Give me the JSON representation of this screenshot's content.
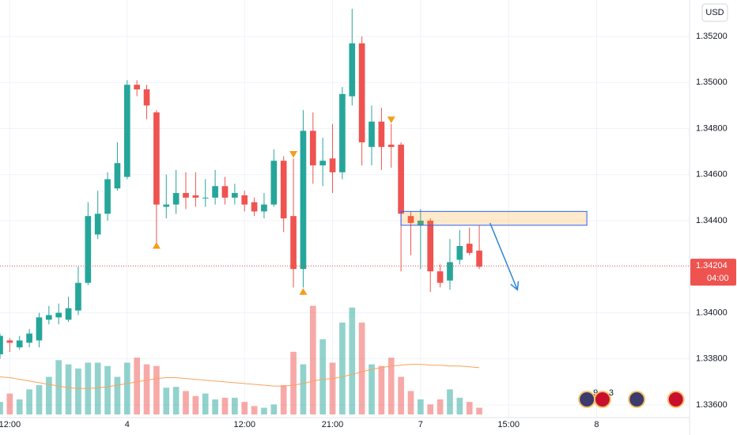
{
  "chart_data": {
    "type": "candlestick",
    "x": [
      0,
      1,
      2,
      3,
      4,
      5,
      6,
      7,
      8,
      9,
      10,
      11,
      12,
      13,
      14,
      15,
      16,
      17,
      18,
      19,
      20,
      21,
      22,
      23,
      24,
      25,
      26,
      27,
      28,
      29,
      30,
      31,
      32,
      33,
      34,
      35,
      36,
      37,
      38,
      39,
      40,
      41,
      42,
      43,
      44,
      45,
      46,
      47,
      48,
      49
    ],
    "open": [
      1.3382,
      1.3388,
      1.3385,
      1.3387,
      1.3388,
      1.3397,
      1.3398,
      1.3397,
      1.3401,
      1.3413,
      1.3434,
      1.3443,
      1.3454,
      1.3459,
      1.3499,
      1.3497,
      1.3487,
      1.3446,
      1.3447,
      1.3452,
      1.3451,
      1.345,
      1.345,
      1.3455,
      1.345,
      1.3451,
      1.3448,
      1.3444,
      1.3447,
      1.3466,
      1.3442,
      1.3419,
      1.3479,
      1.3464,
      1.3467,
      1.3461,
      1.3494,
      1.3517,
      1.3472,
      1.3483,
      1.3473,
      1.3473,
      1.3442,
      1.3438,
      1.344,
      1.3418,
      1.3414,
      1.3423,
      1.343,
      1.3427
    ],
    "high": [
      1.3391,
      1.3389,
      1.339,
      1.3393,
      1.34,
      1.3403,
      1.3404,
      1.3407,
      1.342,
      1.3448,
      1.3453,
      1.3461,
      1.3474,
      1.3501,
      1.3501,
      1.3499,
      1.3488,
      1.346,
      1.3462,
      1.3461,
      1.3461,
      1.3458,
      1.3462,
      1.3459,
      1.3456,
      1.3453,
      1.345,
      1.3452,
      1.3471,
      1.3468,
      1.3467,
      1.3488,
      1.3487,
      1.3476,
      1.3482,
      1.3498,
      1.3532,
      1.352,
      1.349,
      1.3489,
      1.3482,
      1.3474,
      1.3444,
      1.3445,
      1.3441,
      1.3421,
      1.3432,
      1.3436,
      1.3437,
      1.3438
    ],
    "low": [
      1.338,
      1.3383,
      1.3384,
      1.3385,
      1.3385,
      1.3395,
      1.3395,
      1.3396,
      1.3399,
      1.3412,
      1.3432,
      1.344,
      1.3453,
      1.3458,
      1.3494,
      1.3484,
      1.343,
      1.3441,
      1.3443,
      1.3445,
      1.3446,
      1.3446,
      1.3447,
      1.3447,
      1.3447,
      1.3444,
      1.3442,
      1.3441,
      1.3446,
      1.3435,
      1.3411,
      1.3411,
      1.3456,
      1.3455,
      1.3452,
      1.3458,
      1.349,
      1.3464,
      1.3464,
      1.3462,
      1.3463,
      1.3418,
      1.3425,
      1.3419,
      1.3409,
      1.3411,
      1.341,
      1.3421,
      1.3425,
      1.3419
    ],
    "close": [
      1.339,
      1.3387,
      1.3388,
      1.3391,
      1.3398,
      1.3399,
      1.34,
      1.3402,
      1.3413,
      1.3442,
      1.3443,
      1.3458,
      1.3465,
      1.3499,
      1.3497,
      1.349,
      1.3447,
      1.3447,
      1.3452,
      1.345,
      1.345,
      1.345,
      1.3455,
      1.345,
      1.3452,
      1.3447,
      1.3444,
      1.3447,
      1.3466,
      1.3441,
      1.3419,
      1.3479,
      1.3464,
      1.3466,
      1.3461,
      1.3495,
      1.3517,
      1.3474,
      1.3483,
      1.3472,
      1.3472,
      1.3443,
      1.3439,
      1.344,
      1.3418,
      1.3413,
      1.3422,
      1.3429,
      1.3426,
      1.342
    ],
    "volume": [
      15,
      25,
      18,
      30,
      35,
      45,
      65,
      60,
      55,
      62,
      62,
      58,
      45,
      62,
      68,
      60,
      58,
      32,
      33,
      28,
      22,
      25,
      18,
      20,
      20,
      15,
      10,
      8,
      12,
      35,
      75,
      60,
      130,
      90,
      62,
      110,
      128,
      110,
      60,
      58,
      68,
      45,
      28,
      18,
      12,
      18,
      30,
      20,
      15,
      8
    ],
    "volume_ma": [
      45,
      44,
      42,
      40,
      38,
      36,
      34,
      32,
      31,
      31,
      32,
      33,
      35,
      37,
      39,
      41,
      43,
      44,
      44,
      43,
      42,
      41,
      40,
      39,
      38,
      37,
      36,
      35,
      34,
      34,
      35,
      37,
      40,
      42,
      43,
      45,
      48,
      51,
      54,
      56,
      58,
      59,
      60,
      60,
      59,
      59,
      58,
      58,
      57,
      56
    ],
    "up_color": "#26a69a",
    "down_color": "#ef5350",
    "ma_color": "#f7a35c",
    "xlim": [
      0,
      70.5
    ],
    "ylim": [
      1.33545,
      1.35358
    ],
    "vlim": [
      0,
      500
    ],
    "xticks": [
      {
        "value": 1,
        "label": "12:00"
      },
      {
        "value": 13,
        "label": "4"
      },
      {
        "value": 25,
        "label": "12:00"
      },
      {
        "value": 34,
        "label": "21:00"
      },
      {
        "value": 43,
        "label": "7"
      },
      {
        "value": 52,
        "label": "15:00"
      },
      {
        "value": 61,
        "label": "8"
      }
    ],
    "yticks": [
      {
        "value": 1.336,
        "label": "1.33600"
      },
      {
        "value": 1.338,
        "label": "1.33800"
      },
      {
        "value": 1.34,
        "label": "1.34000"
      },
      {
        "value": 1.342,
        "label": "1.34200"
      },
      {
        "value": 1.344,
        "label": "1.34400"
      },
      {
        "value": 1.346,
        "label": "1.34600"
      },
      {
        "value": 1.348,
        "label": "1.34800"
      },
      {
        "value": 1.35,
        "label": "1.35000"
      },
      {
        "value": 1.352,
        "label": "1.35200"
      }
    ],
    "grid": true,
    "currency": "USD",
    "last_price": {
      "value": 1.34204,
      "label": "1.34204"
    },
    "countdown": "04:00",
    "markers": [
      {
        "x": 16,
        "value": 1.3429,
        "dir": "up"
      },
      {
        "x": 30,
        "value": 1.3469,
        "dir": "down"
      },
      {
        "x": 31,
        "value": 1.3409,
        "dir": "up"
      },
      {
        "x": 40,
        "value": 1.3484,
        "dir": "down"
      }
    ],
    "zone": {
      "x": [
        41,
        60
      ],
      "y": [
        1.3438,
        1.3444
      ]
    },
    "arrow": {
      "x": [
        50.1,
        52.9
      ],
      "y": [
        1.3439,
        1.341
      ]
    },
    "events": [
      {
        "x": 60,
        "count": "9"
      },
      {
        "x": 61.6,
        "count": "3"
      },
      {
        "x": 65.1
      },
      {
        "x": 69.1
      }
    ]
  }
}
